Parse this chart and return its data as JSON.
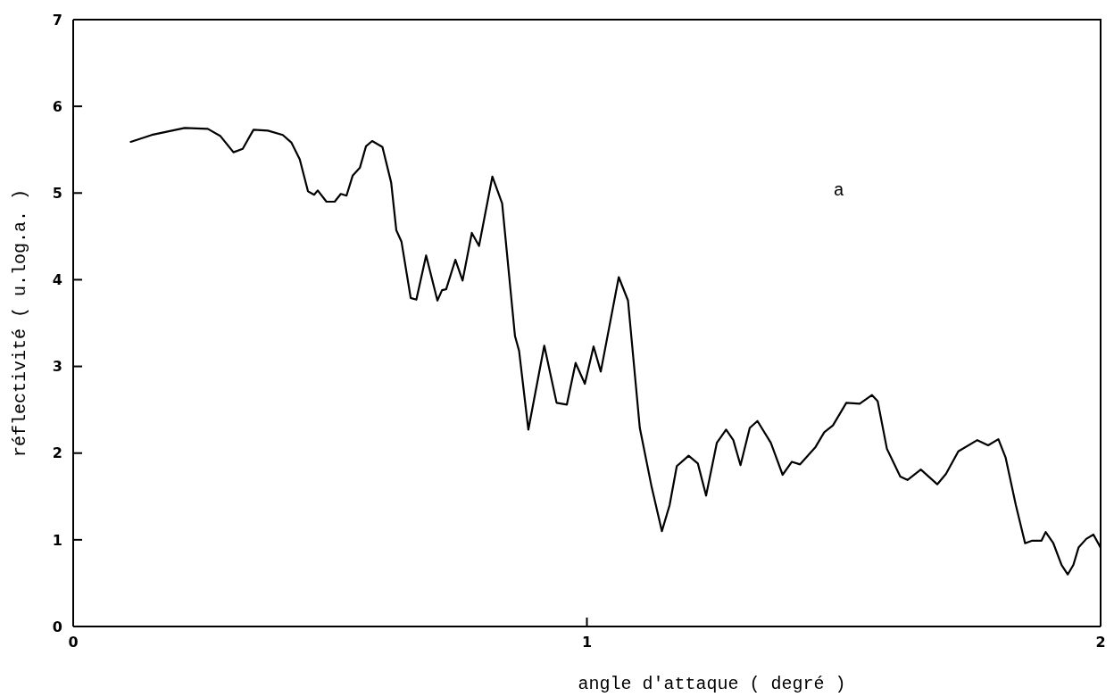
{
  "chart_data": {
    "type": "line",
    "xlabel": "angle d'attaque ( degré )",
    "ylabel": "réflectivité ( u.log.a. )",
    "annotations": [
      "a"
    ],
    "xlim": [
      0,
      2
    ],
    "xticks": [
      0,
      1,
      2
    ],
    "ylim": [
      0,
      7
    ],
    "yticks": [
      0,
      1,
      2,
      3,
      4,
      5,
      6,
      7
    ],
    "grid": false,
    "legend": false,
    "marker": "none",
    "line_style": "solid",
    "series": [
      {
        "color": "#000000",
        "x": [
          0.112,
          0.153,
          0.217,
          0.262,
          0.286,
          0.312,
          0.33,
          0.351,
          0.379,
          0.408,
          0.425,
          0.441,
          0.457,
          0.469,
          0.476,
          0.493,
          0.509,
          0.521,
          0.532,
          0.544,
          0.558,
          0.57,
          0.582,
          0.602,
          0.619,
          0.629,
          0.639,
          0.657,
          0.668,
          0.687,
          0.709,
          0.718,
          0.726,
          0.744,
          0.758,
          0.776,
          0.79,
          0.816,
          0.835,
          0.86,
          0.868,
          0.886,
          0.917,
          0.941,
          0.961,
          0.978,
          0.996,
          1.013,
          1.027,
          1.062,
          1.08,
          1.103,
          1.126,
          1.146,
          1.161,
          1.175,
          1.198,
          1.216,
          1.232,
          1.253,
          1.271,
          1.285,
          1.299,
          1.317,
          1.332,
          1.358,
          1.381,
          1.399,
          1.415,
          1.445,
          1.462,
          1.479,
          1.505,
          1.531,
          1.555,
          1.566,
          1.584,
          1.61,
          1.624,
          1.65,
          1.682,
          1.699,
          1.723,
          1.76,
          1.781,
          1.801,
          1.815,
          1.835,
          1.853,
          1.867,
          1.885,
          1.893,
          1.908,
          1.924,
          1.936,
          1.947,
          1.957,
          1.972,
          1.986,
          2.0
        ],
        "values": [
          5.59,
          5.67,
          5.75,
          5.74,
          5.66,
          5.47,
          5.51,
          5.73,
          5.72,
          5.67,
          5.58,
          5.39,
          5.02,
          4.98,
          5.03,
          4.9,
          4.9,
          4.99,
          4.97,
          5.2,
          5.29,
          5.54,
          5.6,
          5.53,
          5.12,
          4.57,
          4.44,
          3.79,
          3.77,
          4.28,
          3.76,
          3.88,
          3.89,
          4.23,
          3.99,
          4.54,
          4.39,
          5.19,
          4.88,
          3.35,
          3.18,
          2.27,
          3.24,
          2.58,
          2.56,
          3.04,
          2.8,
          3.23,
          2.94,
          4.03,
          3.76,
          2.29,
          1.61,
          1.1,
          1.4,
          1.85,
          1.97,
          1.88,
          1.51,
          2.12,
          2.27,
          2.15,
          1.86,
          2.29,
          2.37,
          2.12,
          1.75,
          1.9,
          1.87,
          2.07,
          2.24,
          2.32,
          2.58,
          2.57,
          2.67,
          2.6,
          2.05,
          1.73,
          1.69,
          1.81,
          1.64,
          1.76,
          2.02,
          2.15,
          2.09,
          2.16,
          1.95,
          1.4,
          0.96,
          0.99,
          0.99,
          1.09,
          0.96,
          0.71,
          0.6,
          0.71,
          0.91,
          1.01,
          1.06,
          0.91
        ]
      }
    ]
  }
}
